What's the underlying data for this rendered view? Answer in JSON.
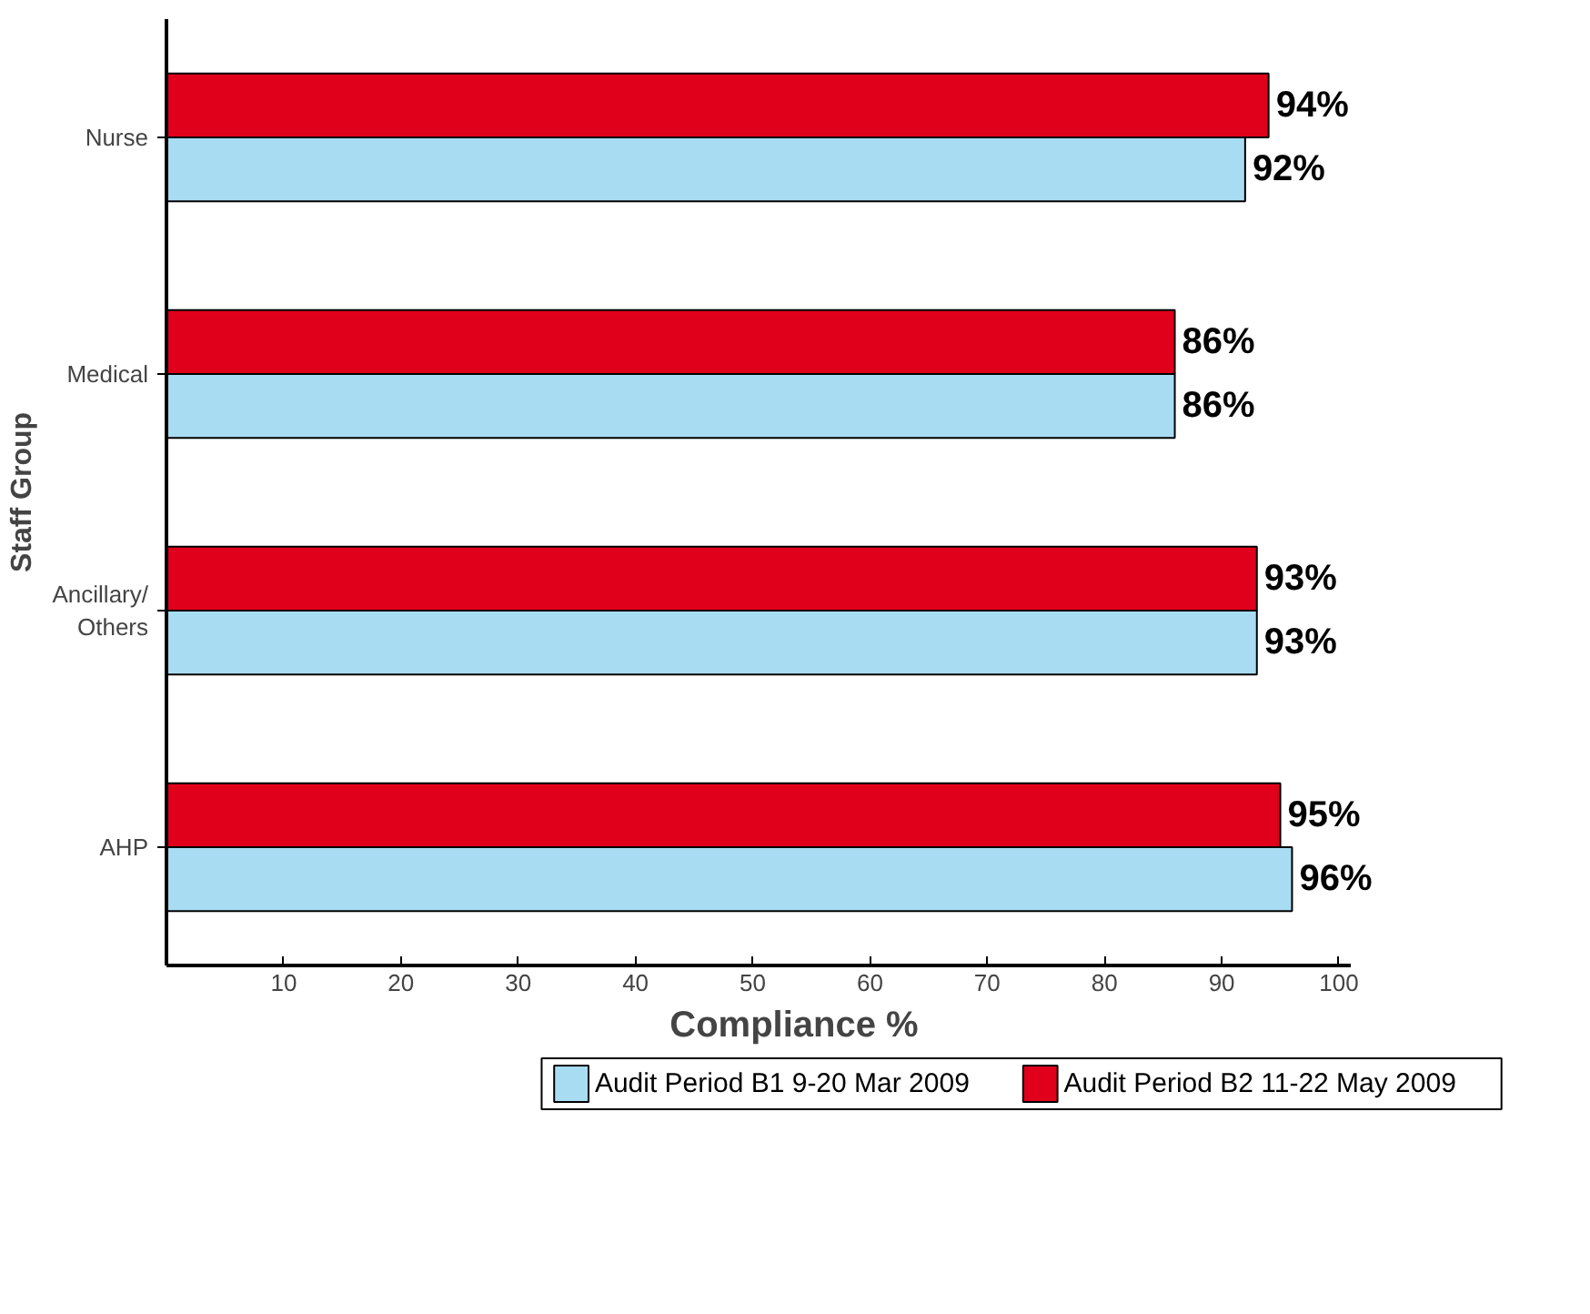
{
  "chart_data": {
    "type": "bar",
    "orientation": "horizontal",
    "xlabel": "Compliance %",
    "ylabel": "Staff Group",
    "categories": [
      "Nurse",
      "Medical",
      "Ancillary/\nOthers",
      "AHP"
    ],
    "series": [
      {
        "name": "Audit Period B1 9-20 Mar 2009",
        "color": "#a8dcf2",
        "values": [
          92,
          86,
          93,
          96
        ],
        "value_labels": [
          "92%",
          "86%",
          "93%",
          "96%"
        ]
      },
      {
        "name": "Audit Period B2 11-22 May 2009",
        "color": "#e0001b",
        "values": [
          94,
          86,
          93,
          95
        ],
        "value_labels": [
          "94%",
          "86%",
          "93%",
          "95%"
        ]
      }
    ],
    "xlim": [
      0,
      101
    ],
    "xticks": [
      10,
      20,
      30,
      40,
      50,
      60,
      70,
      80,
      90,
      100
    ],
    "grid": false,
    "legend": "bottom"
  }
}
